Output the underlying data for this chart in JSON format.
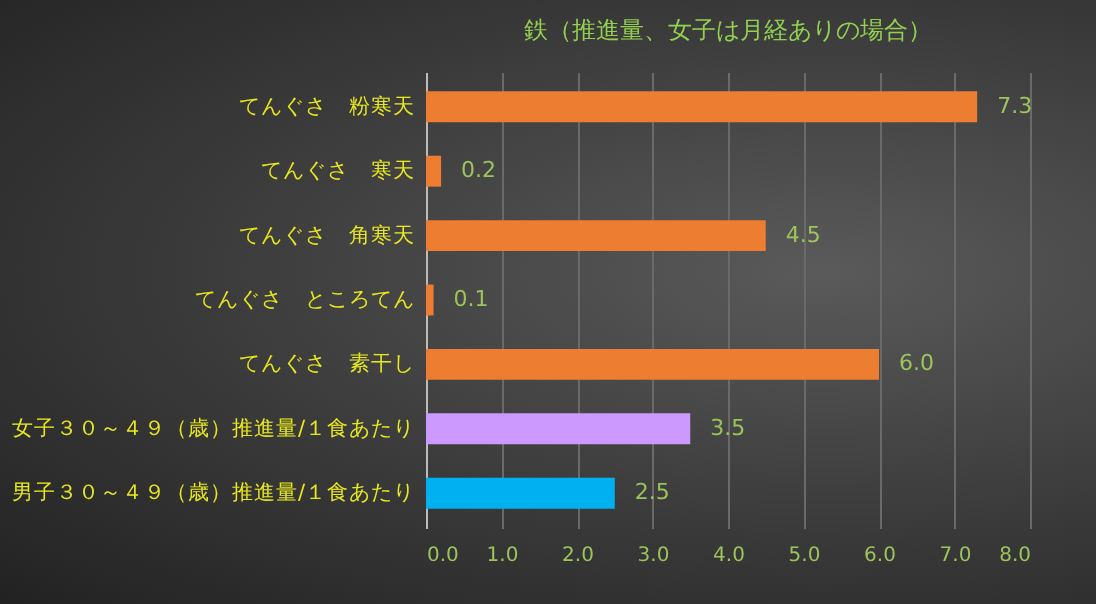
{
  "chart_data": {
    "type": "bar",
    "orientation": "horizontal",
    "title": "鉄（推進量、女子は月経ありの場合）",
    "categories": [
      "てんぐさ　粉寒天",
      "てんぐさ　寒天",
      "てんぐさ　角寒天",
      "てんぐさ　ところてん",
      "てんぐさ　素干し",
      "女子３０～４９（歳）推進量/１食あたり",
      "男子３０～４９（歳）推進量/１食あたり"
    ],
    "values": [
      7.3,
      0.2,
      4.5,
      0.1,
      6.0,
      3.5,
      2.5
    ],
    "colors": [
      "#ed7d31",
      "#ed7d31",
      "#ed7d31",
      "#ed7d31",
      "#ed7d31",
      "#cc99ff",
      "#00b0f0"
    ],
    "xlim": [
      0,
      8
    ],
    "xticks": [
      {
        "value": 0,
        "label": "0.0"
      },
      {
        "value": 1,
        "label": "1.0"
      },
      {
        "value": 2,
        "label": "2.0"
      },
      {
        "value": 3,
        "label": "3.0"
      },
      {
        "value": 4,
        "label": "4.0"
      },
      {
        "value": 5,
        "label": "5.0"
      },
      {
        "value": 6,
        "label": "6.0"
      },
      {
        "value": 7,
        "label": "7.0"
      },
      {
        "value": 8,
        "label": "8.0"
      }
    ],
    "value_labels": [
      "7.3",
      "0.2",
      "4.5",
      "0.1",
      "6.0",
      "3.5",
      "2.5"
    ],
    "grid": "x",
    "legend": false
  }
}
